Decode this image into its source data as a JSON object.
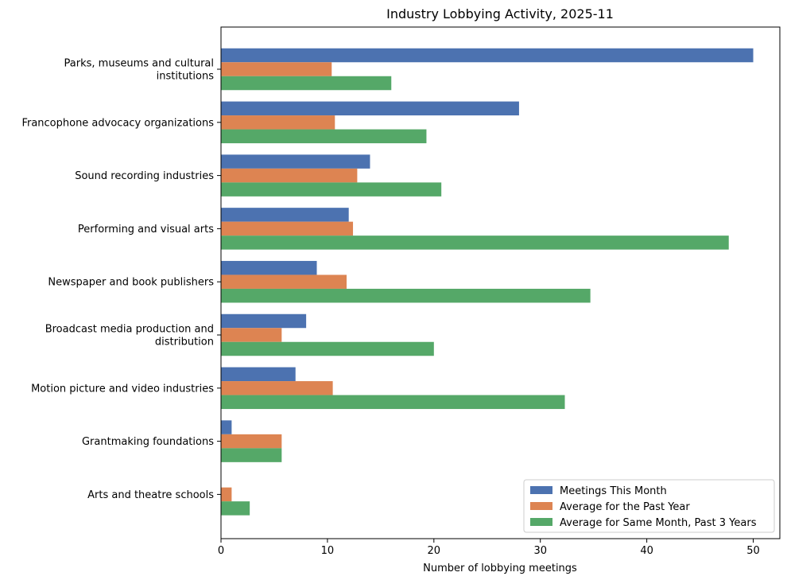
{
  "chart_data": {
    "type": "bar",
    "orientation": "horizontal",
    "title": "Industry Lobbying Activity, 2025-11",
    "xlabel": "Number of lobbying meetings",
    "ylabel": "",
    "xlim": [
      0,
      52.5
    ],
    "xticks": [
      0,
      10,
      20,
      30,
      40,
      50
    ],
    "grid": false,
    "legend_position": "lower-right",
    "categories": [
      [
        "Parks, museums and cultural",
        "institutions"
      ],
      [
        "Francophone advocacy organizations"
      ],
      [
        "Sound recording industries"
      ],
      [
        "Performing and visual arts"
      ],
      [
        "Newspaper and book publishers"
      ],
      [
        "Broadcast media production and",
        "distribution"
      ],
      [
        "Motion picture and video industries"
      ],
      [
        "Grantmaking foundations"
      ],
      [
        "Arts and theatre schools"
      ]
    ],
    "series": [
      {
        "name": "Meetings This Month",
        "color": "#4c72b0",
        "values": [
          50,
          28,
          14,
          12,
          9,
          8,
          7,
          1,
          0
        ]
      },
      {
        "name": "Average for the Past Year",
        "color": "#dd8452",
        "values": [
          10.4,
          10.7,
          12.8,
          12.4,
          11.8,
          5.7,
          10.5,
          5.7,
          1.0
        ]
      },
      {
        "name": "Average for Same Month, Past 3 Years",
        "color": "#55a868",
        "values": [
          16.0,
          19.3,
          20.7,
          47.7,
          34.7,
          20.0,
          32.3,
          5.7,
          2.7
        ]
      }
    ]
  }
}
